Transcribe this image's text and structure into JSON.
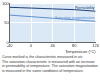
{
  "chart_data": {
    "type": "line",
    "x_label": "Temperature (°C)",
    "x": [
      -40,
      -20,
      0,
      20,
      40,
      60,
      80,
      100,
      120
    ],
    "series": [
      {
        "name": "Permeability",
        "color": "#1f3f7a",
        "values": [
          90,
          89,
          88,
          87,
          86,
          85,
          84,
          82,
          80
        ]
      },
      {
        "name": "Saturation magnetization",
        "color": "#5b8fd0",
        "values": [
          70,
          68,
          66,
          64,
          62,
          60,
          58,
          56,
          54
        ]
      }
    ],
    "xlim": [
      -40,
      120
    ],
    "xticks": [
      -40,
      0,
      40,
      80,
      120
    ],
    "ylim": [
      0,
      100
    ],
    "yticks": [
      0,
      50,
      100
    ],
    "grid": true,
    "annotations": [
      "Curve marked is the characteristic measured in air.",
      "The saturation characteristic is measured with an increase",
      "in permeability at temperature. The saturation magnetization",
      "is measured in the same conditions of temperature."
    ]
  }
}
